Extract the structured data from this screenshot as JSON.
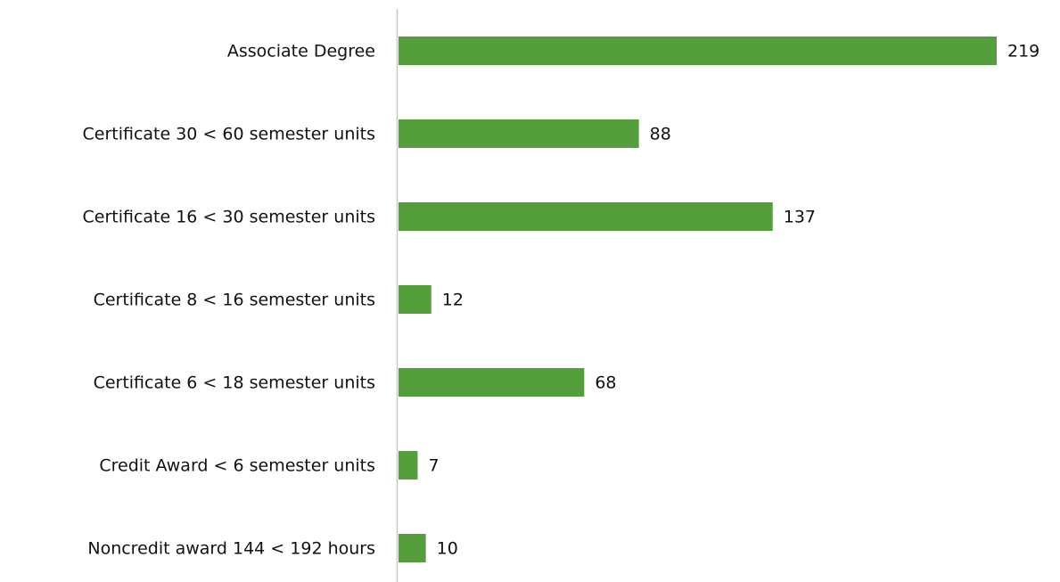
{
  "chart_data": {
    "type": "bar",
    "orientation": "horizontal",
    "categories": [
      "Associate Degree",
      "Certificate 30 < 60 semester units",
      "Certificate 16 < 30 semester units",
      "Certificate 8 < 16 semester units",
      "Certificate 6 < 18 semester units",
      "Credit Award < 6 semester units",
      "Noncredit award 144 < 192 hours"
    ],
    "values": [
      219,
      88,
      137,
      12,
      68,
      7,
      10
    ],
    "color": "#559e3c"
  }
}
